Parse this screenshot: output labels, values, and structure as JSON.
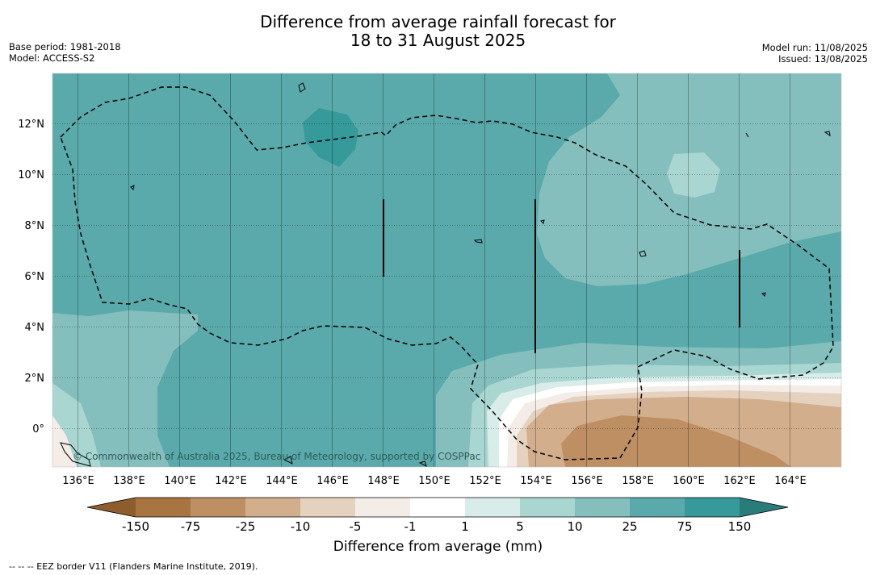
{
  "title_line1": "Difference from average rainfall forecast for",
  "title_line2": "18 to 31 August 2025",
  "base_period": "Base period: 1981-2018",
  "model": "Model: ACCESS-S2",
  "model_run": "Model run: 11/08/2025",
  "issued": "Issued: 13/08/2025",
  "copyright": "© Commonwealth of Australia 2025, Bureau of Meteorology, supported by COSPPac",
  "footnote": "-- -- -- EEZ border V11 (Flanders Marine Institute, 2019).",
  "map": {
    "lon_range": [
      135,
      166
    ],
    "lat_range": [
      -1.5,
      14
    ],
    "lon_ticks": [
      "136°E",
      "138°E",
      "140°E",
      "142°E",
      "144°E",
      "146°E",
      "148°E",
      "150°E",
      "152°E",
      "154°E",
      "156°E",
      "158°E",
      "160°E",
      "162°E",
      "164°E"
    ],
    "lat_ticks": [
      "12°N",
      "10°N",
      "8°N",
      "6°N",
      "4°N",
      "2°N",
      "0°"
    ]
  },
  "legend": {
    "title": "Difference from average (mm)",
    "labels": [
      "-150",
      "-75",
      "-25",
      "-10",
      "-5",
      "-1",
      "1",
      "5",
      "10",
      "25",
      "75",
      "150"
    ],
    "colors": [
      "#a87440",
      "#bd8f63",
      "#d2ae8c",
      "#e4d1be",
      "#f4ede7",
      "#ffffff",
      "#d8ece9",
      "#aad6d2",
      "#84bfbd",
      "#5aaaab",
      "#36999a"
    ],
    "extend_low_color": "#8e5d2e",
    "extend_high_color": "#2a7c7b"
  }
}
